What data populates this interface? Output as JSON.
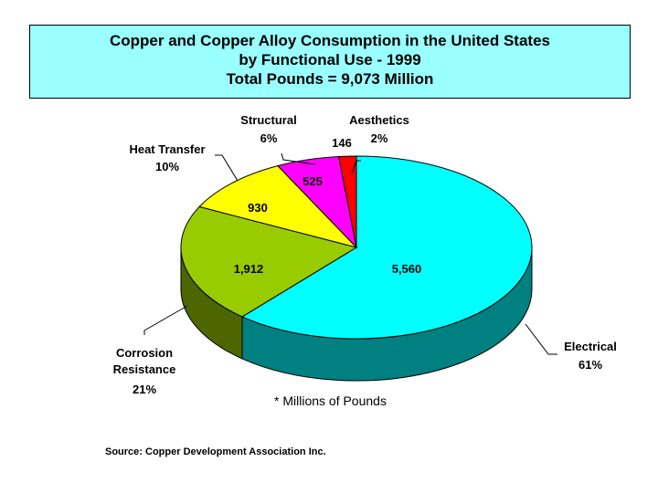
{
  "chart_data": {
    "type": "pie",
    "title_lines": [
      "Copper and Copper Alloy Consumption in the United States",
      "by Functional Use - 1999",
      "Total Pounds = 9,073 Million"
    ],
    "note": "* Millions of Pounds",
    "source": "Source: Copper Development Association Inc.",
    "slices": [
      {
        "label": "Electrical",
        "value": 5560,
        "value_text": "5,560",
        "percent_text": "61%",
        "color": "#00ffff",
        "side_color": "#008080"
      },
      {
        "label": "Corrosion Resistance",
        "label_lines": [
          "Corrosion",
          "Resistance"
        ],
        "value": 1912,
        "value_text": "1,912",
        "percent_text": "21%",
        "color": "#99cc00",
        "side_color": "#4d6600"
      },
      {
        "label": "Heat Transfer",
        "value": 930,
        "value_text": "930",
        "percent_text": "10%",
        "color": "#ffff00",
        "side_color": "#808000"
      },
      {
        "label": "Structural",
        "value": 525,
        "value_text": "525",
        "percent_text": "6%",
        "color": "#ff00ff",
        "side_color": "#800080"
      },
      {
        "label": "Aesthetics",
        "value": 146,
        "value_text": "146",
        "percent_text": "2%",
        "color": "#ff0000",
        "side_color": "#800000"
      }
    ]
  }
}
